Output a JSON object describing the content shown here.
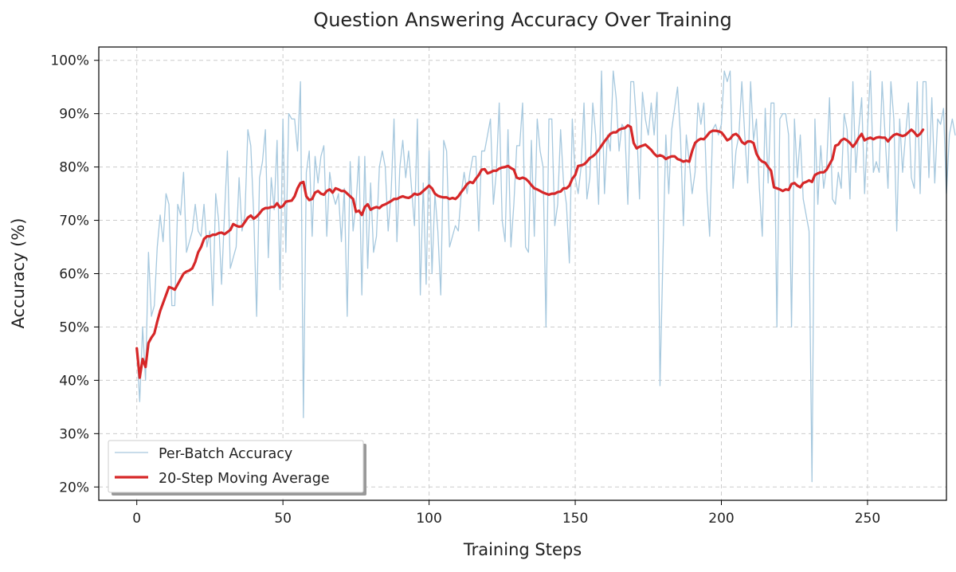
{
  "chart_data": {
    "type": "line",
    "title": "Question Answering Accuracy Over Training",
    "xlabel": "Training Steps",
    "ylabel": "Accuracy (%)",
    "xlim": [
      -13,
      277
    ],
    "ylim": [
      17.5,
      102.5
    ],
    "xticks": [
      0,
      50,
      100,
      150,
      200,
      250
    ],
    "yticks": [
      20,
      30,
      40,
      50,
      60,
      70,
      80,
      90,
      100
    ],
    "xtick_labels": [
      "0",
      "50",
      "100",
      "150",
      "200",
      "250"
    ],
    "ytick_labels": [
      "20%",
      "30%",
      "40%",
      "50%",
      "60%",
      "70%",
      "80%",
      "90%",
      "100%"
    ],
    "grid": true,
    "legend_position": "lower-left",
    "series": [
      {
        "name": "Per-Batch Accuracy",
        "color": "#a6c8de",
        "style": "thin",
        "x_start": 0,
        "x_step": 1,
        "values": [
          46,
          36,
          50,
          40,
          64,
          52,
          54,
          65,
          71,
          66,
          75,
          73,
          54,
          54,
          73,
          71,
          79,
          64,
          66,
          68,
          73,
          68,
          67,
          73,
          65,
          68,
          54,
          75,
          70,
          58,
          71,
          83,
          61,
          63,
          65,
          78,
          68,
          71,
          87,
          84,
          71,
          52,
          78,
          81,
          87,
          63,
          78,
          72,
          85,
          57,
          89,
          64,
          90,
          89,
          89,
          83,
          96,
          33,
          79,
          83,
          67,
          82,
          77,
          82,
          84,
          67,
          79,
          75,
          73,
          75,
          66,
          76,
          52,
          81,
          68,
          73,
          82,
          56,
          82,
          61,
          77,
          64,
          67,
          80,
          83,
          80,
          68,
          75,
          89,
          66,
          80,
          85,
          78,
          83,
          76,
          69,
          89,
          56,
          77,
          58,
          83,
          60,
          75,
          68,
          56,
          85,
          83,
          65,
          67,
          69,
          68,
          75,
          79,
          75,
          79,
          82,
          82,
          68,
          83,
          83,
          86,
          89,
          73,
          79,
          92,
          70,
          66,
          87,
          65,
          73,
          84,
          84,
          92,
          65,
          64,
          85,
          67,
          89,
          83,
          80,
          50,
          89,
          89,
          69,
          73,
          87,
          77,
          73,
          62,
          89,
          78,
          75,
          80,
          92,
          74,
          78,
          92,
          86,
          73,
          98,
          75,
          86,
          83,
          98,
          93,
          83,
          88,
          87,
          73,
          96,
          96,
          88,
          74,
          94,
          89,
          86,
          92,
          86,
          94,
          39,
          63,
          86,
          75,
          87,
          91,
          95,
          86,
          69,
          86,
          81,
          75,
          79,
          92,
          88,
          92,
          76,
          67,
          87,
          88,
          86,
          88,
          98,
          96,
          98,
          76,
          83,
          86,
          96,
          86,
          77,
          96,
          85,
          89,
          76,
          67,
          91,
          77,
          92,
          92,
          50,
          89,
          90,
          90,
          86,
          50,
          89,
          78,
          86,
          74,
          71,
          68,
          21,
          89,
          73,
          84,
          76,
          80,
          93,
          74,
          73,
          79,
          76,
          90,
          87,
          74,
          96,
          79,
          87,
          93,
          75,
          87,
          98,
          79,
          81,
          79,
          96,
          86,
          76,
          96,
          89,
          68,
          89,
          79,
          86,
          92,
          78,
          76,
          96,
          75,
          96,
          96,
          78,
          93,
          77,
          89,
          88,
          91,
          75,
          86,
          89,
          86
        ]
      },
      {
        "name": "20-Step Moving Average",
        "color": "#d62728",
        "style": "thick",
        "x_start": 0,
        "x_step": 1,
        "values": [
          46,
          40.5,
          44,
          42.5,
          47,
          48,
          48.8,
          51,
          53,
          54.5,
          56,
          57.5,
          57.3,
          57,
          58,
          59,
          60,
          60.4,
          60.6,
          61,
          62.2,
          64,
          65,
          66.5,
          67,
          67,
          67.3,
          67.3,
          67.6,
          67.7,
          67.4,
          67.8,
          68.2,
          69.3,
          69,
          68.8,
          68.9,
          69.7,
          70.5,
          70.9,
          70.3,
          70.7,
          71.3,
          72,
          72.3,
          72.3,
          72.5,
          72.5,
          73.2,
          72.4,
          72.7,
          73.5,
          73.6,
          73.7,
          74.5,
          76,
          77,
          77.2,
          74.5,
          73.8,
          74,
          75.2,
          75.5,
          75,
          74.8,
          75.5,
          75.8,
          75.2,
          76,
          75.8,
          75.5,
          75.5,
          75,
          74.5,
          74,
          71.6,
          71.8,
          71,
          72.5,
          73,
          72,
          72.3,
          72.5,
          72.3,
          72.8,
          73,
          73.3,
          73.6,
          74,
          74,
          74.3,
          74.5,
          74.3,
          74.2,
          74.5,
          75,
          74.8,
          75,
          75.5,
          76,
          76.5,
          76,
          75,
          74.6,
          74.4,
          74.3,
          74.3,
          74,
          74.2,
          74,
          74.5,
          75.3,
          76,
          76.8,
          77.2,
          77,
          77.8,
          78.5,
          79.5,
          79.6,
          78.8,
          79,
          79.3,
          79.3,
          79.7,
          79.9,
          80,
          80.2,
          79.8,
          79.5,
          78,
          77.8,
          78,
          77.8,
          77.3,
          76.6,
          76,
          75.8,
          75.5,
          75.2,
          75,
          74.8,
          75,
          75,
          75.3,
          75.4,
          76,
          76,
          76.5,
          77.8,
          78.5,
          80.2,
          80.3,
          80.5,
          81,
          81.7,
          82,
          82.5,
          83.2,
          84,
          84.8,
          85.5,
          86.2,
          86.5,
          86.5,
          87,
          87.2,
          87.3,
          87.8,
          87.5,
          84.5,
          83.5,
          83.8,
          84,
          84.2,
          83.7,
          83.2,
          82.5,
          82,
          82.2,
          82,
          81.5,
          81.8,
          82,
          82,
          81.5,
          81.3,
          81,
          81.2,
          81,
          83,
          84.5,
          85,
          85.3,
          85.2,
          85.8,
          86.5,
          86.8,
          86.8,
          86.7,
          86.5,
          85.8,
          85,
          85.3,
          86,
          86.2,
          85.7,
          84.7,
          84.3,
          84.8,
          84.8,
          84.5,
          82.5,
          81.5,
          81,
          80.8,
          80,
          79.3,
          76.2,
          76,
          75.8,
          75.5,
          75.8,
          75.7,
          76.8,
          77,
          76.5,
          76.2,
          77,
          77.2,
          77.5,
          77.2,
          78.5,
          78.8,
          79,
          79,
          79.5,
          80.5,
          81.5,
          84,
          84.2,
          85,
          85.3,
          85,
          84.5,
          83.8,
          84.5,
          85.5,
          86.2,
          85,
          85.3,
          85.5,
          85.2,
          85.5,
          85.6,
          85.5,
          85.5,
          84.8,
          85.5,
          86,
          86.2,
          86,
          85.8,
          86,
          86.5,
          87,
          86.5,
          85.8,
          86.2,
          87
        ]
      }
    ]
  }
}
